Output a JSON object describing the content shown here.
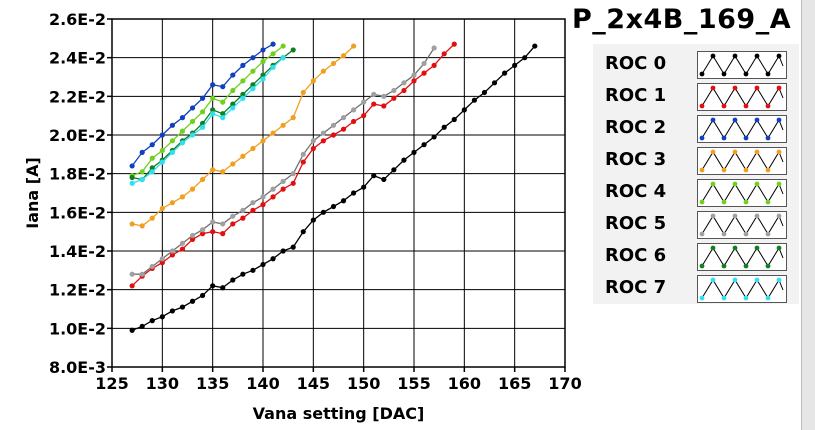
{
  "chart_data": {
    "type": "line",
    "title": "P_2x4B_169_A",
    "xlabel": "Vana setting [DAC]",
    "ylabel": "Iana [A]",
    "xlim": [
      125,
      170
    ],
    "ylim": [
      0.008,
      0.026
    ],
    "x_ticks": [
      125,
      130,
      135,
      140,
      145,
      150,
      155,
      160,
      165,
      170
    ],
    "x_tick_labels": [
      "125",
      "130",
      "135",
      "140",
      "145",
      "150",
      "155",
      "160",
      "165",
      "170"
    ],
    "y_ticks": [
      0.008,
      0.01,
      0.012,
      0.014,
      0.016,
      0.018,
      0.02,
      0.022,
      0.024,
      0.026
    ],
    "y_tick_labels": [
      "8.0E-3",
      "1.0E-2",
      "1.2E-2",
      "1.4E-2",
      "1.6E-2",
      "1.8E-2",
      "2.0E-2",
      "2.2E-2",
      "2.4E-2",
      "2.6E-2"
    ],
    "grid": true,
    "legend_position": "right",
    "series": [
      {
        "name": "ROC 0",
        "color": "#000000",
        "x": [
          127,
          128,
          129,
          130,
          131,
          132,
          133,
          134,
          135,
          136,
          137,
          138,
          139,
          140,
          141,
          142,
          143,
          144,
          145,
          146,
          147,
          148,
          149,
          150,
          151,
          152,
          153,
          154,
          155,
          156,
          157,
          158,
          159,
          160,
          161,
          162,
          163,
          164,
          165,
          166,
          167
        ],
        "y": [
          0.0099,
          0.0101,
          0.0104,
          0.0106,
          0.0109,
          0.0111,
          0.0114,
          0.0117,
          0.0122,
          0.0121,
          0.0125,
          0.0128,
          0.013,
          0.0133,
          0.0136,
          0.014,
          0.0142,
          0.015,
          0.0156,
          0.016,
          0.0163,
          0.0166,
          0.017,
          0.0173,
          0.0179,
          0.0177,
          0.0182,
          0.0187,
          0.0191,
          0.0195,
          0.0199,
          0.0204,
          0.0208,
          0.0213,
          0.0218,
          0.0222,
          0.0227,
          0.0232,
          0.0236,
          0.024,
          0.0246
        ]
      },
      {
        "name": "ROC 1",
        "color": "#e01010",
        "x": [
          127,
          128,
          129,
          130,
          131,
          132,
          133,
          134,
          135,
          136,
          137,
          138,
          139,
          140,
          141,
          142,
          143,
          144,
          145,
          146,
          147,
          148,
          149,
          150,
          151,
          152,
          153,
          154,
          155,
          156,
          157,
          158,
          159
        ],
        "y": [
          0.0122,
          0.0127,
          0.0131,
          0.0134,
          0.0138,
          0.0141,
          0.0146,
          0.0149,
          0.015,
          0.0149,
          0.0154,
          0.0157,
          0.0161,
          0.0164,
          0.0168,
          0.0172,
          0.0175,
          0.0186,
          0.0193,
          0.0197,
          0.02,
          0.0203,
          0.0207,
          0.021,
          0.0216,
          0.0215,
          0.0219,
          0.0223,
          0.0228,
          0.0232,
          0.0236,
          0.0242,
          0.0247
        ]
      },
      {
        "name": "ROC 2",
        "color": "#1040c0",
        "x": [
          127,
          128,
          129,
          130,
          131,
          132,
          133,
          134,
          135,
          136,
          137,
          138,
          139,
          140,
          141
        ],
        "y": [
          0.0184,
          0.0191,
          0.0195,
          0.02,
          0.0205,
          0.0209,
          0.0214,
          0.0219,
          0.0226,
          0.0225,
          0.0231,
          0.0236,
          0.024,
          0.0244,
          0.0247
        ]
      },
      {
        "name": "ROC 3",
        "color": "#f0a020",
        "x": [
          127,
          128,
          129,
          130,
          131,
          132,
          133,
          134,
          135,
          136,
          137,
          138,
          139,
          140,
          141,
          142,
          143,
          144,
          145,
          146,
          147,
          148,
          149
        ],
        "y": [
          0.0154,
          0.0153,
          0.0157,
          0.0162,
          0.0165,
          0.0168,
          0.0172,
          0.0177,
          0.0182,
          0.0181,
          0.0185,
          0.0189,
          0.0193,
          0.0197,
          0.0201,
          0.0205,
          0.0209,
          0.0222,
          0.0228,
          0.0233,
          0.0237,
          0.0241,
          0.0246
        ]
      },
      {
        "name": "ROC 4",
        "color": "#70d020",
        "x": [
          127,
          128,
          129,
          130,
          131,
          132,
          133,
          134,
          135,
          136,
          137,
          138,
          139,
          140,
          141,
          142
        ],
        "y": [
          0.0179,
          0.0181,
          0.0188,
          0.0192,
          0.0197,
          0.0202,
          0.0207,
          0.0212,
          0.0219,
          0.0217,
          0.0223,
          0.0228,
          0.0233,
          0.0238,
          0.0242,
          0.0246
        ]
      },
      {
        "name": "ROC 5",
        "color": "#a0a0a0",
        "x": [
          127,
          128,
          129,
          130,
          131,
          132,
          133,
          134,
          135,
          136,
          137,
          138,
          139,
          140,
          141,
          142,
          143,
          144,
          145,
          146,
          147,
          148,
          149,
          150,
          151,
          152,
          153,
          154,
          155,
          156,
          157
        ],
        "y": [
          0.0128,
          0.0128,
          0.0132,
          0.0136,
          0.014,
          0.0144,
          0.0148,
          0.0151,
          0.0155,
          0.0154,
          0.0158,
          0.0161,
          0.0165,
          0.0168,
          0.0172,
          0.0176,
          0.018,
          0.019,
          0.0197,
          0.0201,
          0.0205,
          0.0209,
          0.0213,
          0.0217,
          0.0221,
          0.022,
          0.0223,
          0.0227,
          0.0231,
          0.0237,
          0.0245
        ]
      },
      {
        "name": "ROC 6",
        "color": "#108020",
        "x": [
          127,
          128,
          129,
          130,
          131,
          132,
          133,
          134,
          135,
          136,
          137,
          138,
          139,
          140,
          141,
          142,
          143
        ],
        "y": [
          0.0178,
          0.0177,
          0.0183,
          0.0187,
          0.0192,
          0.0197,
          0.0201,
          0.0206,
          0.0213,
          0.0211,
          0.0216,
          0.0221,
          0.0226,
          0.0231,
          0.0236,
          0.024,
          0.0244
        ]
      },
      {
        "name": "ROC 7",
        "color": "#30e0f0",
        "x": [
          127,
          128,
          129,
          130,
          131,
          132,
          133,
          134,
          135,
          136,
          137,
          138,
          139,
          140,
          141,
          142
        ],
        "y": [
          0.0175,
          0.0177,
          0.0181,
          0.0186,
          0.0191,
          0.0196,
          0.02,
          0.0204,
          0.0211,
          0.0209,
          0.0214,
          0.0219,
          0.0224,
          0.0229,
          0.0235,
          0.024
        ]
      }
    ]
  }
}
